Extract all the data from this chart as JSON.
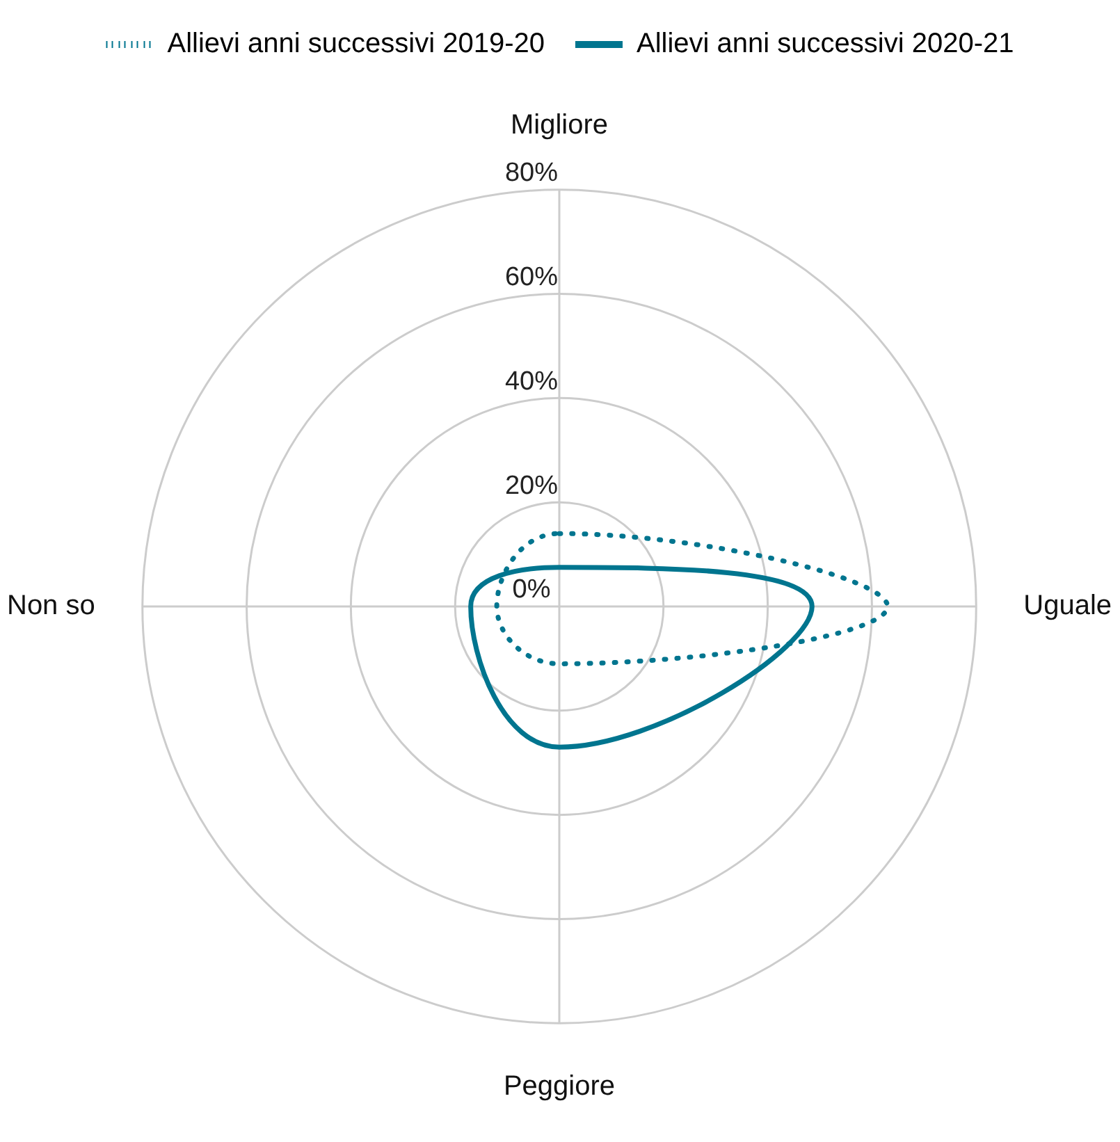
{
  "chart_data": {
    "type": "radar",
    "categories": [
      "Migliore",
      "Uguale",
      "Peggiore",
      "Non so"
    ],
    "series": [
      {
        "name": "Allievi anni successivi 2019-20",
        "color": "#00758f",
        "values": [
          14,
          63,
          11,
          12
        ],
        "line_style": "dotted"
      },
      {
        "name": "Allievi anni successivi 2020-21",
        "color": "#00758f",
        "values": [
          7.5,
          48.5,
          27,
          17
        ],
        "line_style": "solid"
      }
    ],
    "ylim": [
      0,
      80
    ],
    "yticks": [
      {
        "value": 0,
        "label": "0%"
      },
      {
        "value": 20,
        "label": "20%"
      },
      {
        "value": 40,
        "label": "40%"
      },
      {
        "value": 60,
        "label": "60%"
      },
      {
        "value": 80,
        "label": "80%"
      }
    ],
    "grid": true,
    "legend": "top",
    "marker": "none"
  }
}
